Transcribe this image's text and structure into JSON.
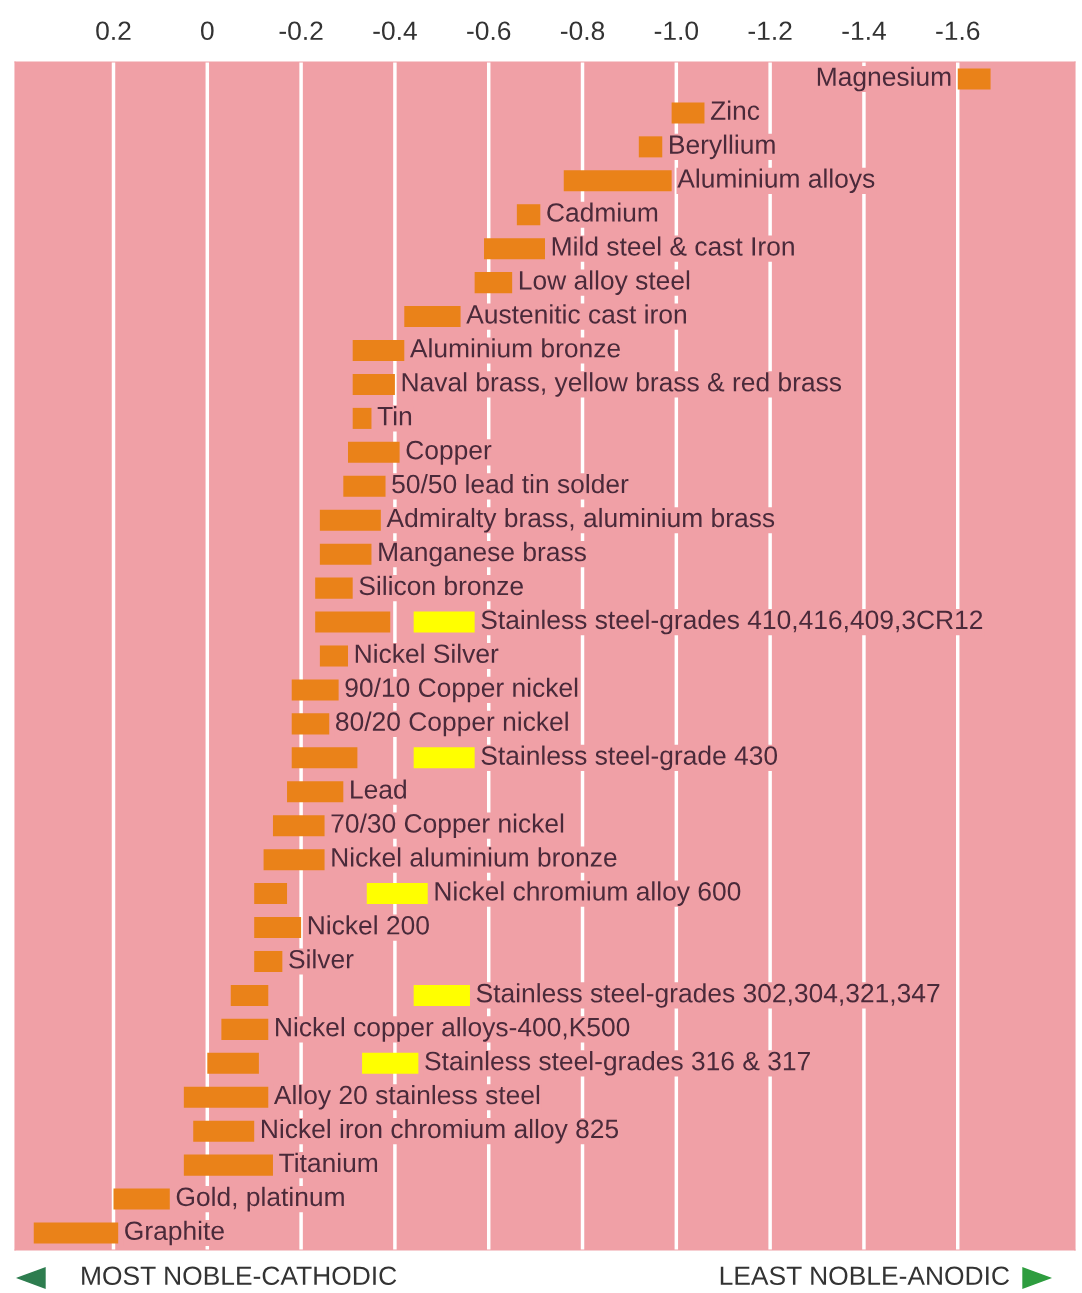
{
  "chart_data": {
    "type": "bar",
    "orientation": "horizontal",
    "categories": [
      "Magnesium",
      "Zinc",
      "Beryllium",
      "Aluminium alloys",
      "Cadmium",
      "Mild steel & cast Iron",
      "Low alloy steel",
      "Austenitic cast iron",
      "Aluminium bronze",
      "Naval brass, yellow brass & red brass",
      "Tin",
      "Copper",
      "50/50 lead tin solder",
      "Admiralty brass, aluminium brass",
      "Manganese brass",
      "Silicon bronze",
      "Stainless steel-grades 410,416,409,3CR12",
      "Nickel Silver",
      "90/10 Copper nickel",
      "80/20 Copper nickel",
      "Stainless steel-grade 430",
      "Lead",
      "70/30 Copper nickel",
      "Nickel aluminium bronze",
      "Nickel chromium alloy 600",
      "Nickel 200",
      "Silver",
      "Stainless steel-grades 302,304,321,347",
      "Nickel copper alloys-400,K500",
      "Stainless steel-grades 316 & 317",
      "Alloy 20 stainless steel",
      "Nickel iron chromium alloy 825",
      "Titanium",
      "Gold, platinum",
      "Graphite"
    ],
    "series": [
      {
        "color": "#ea8219",
        "base": [
          -1.6,
          -0.99,
          -0.92,
          -0.76,
          -0.66,
          -0.59,
          -0.57,
          -0.42,
          -0.31,
          -0.31,
          -0.31,
          -0.3,
          -0.29,
          -0.24,
          -0.24,
          -0.23,
          -0.23,
          -0.24,
          -0.18,
          -0.18,
          -0.18,
          -0.17,
          -0.14,
          -0.12,
          -0.1,
          -0.1,
          -0.1,
          -0.05,
          -0.03,
          0.0,
          0.05,
          0.03,
          0.05,
          0.2,
          0.37
        ],
        "values": [
          -0.07,
          -0.07,
          -0.05,
          -0.23,
          -0.05,
          -0.13,
          -0.08,
          -0.12,
          -0.11,
          -0.09,
          -0.04,
          -0.11,
          -0.09,
          -0.13,
          -0.11,
          -0.08,
          -0.16,
          -0.06,
          -0.1,
          -0.08,
          -0.14,
          -0.12,
          -0.11,
          -0.13,
          -0.07,
          -0.1,
          -0.06,
          -0.08,
          -0.1,
          -0.11,
          -0.18,
          -0.13,
          -0.19,
          -0.12,
          -0.18
        ]
      },
      {
        "color": "#ffff00",
        "base": [
          null,
          null,
          null,
          null,
          null,
          null,
          null,
          null,
          null,
          null,
          null,
          null,
          null,
          null,
          null,
          null,
          -0.44,
          null,
          null,
          null,
          -0.44,
          null,
          null,
          null,
          -0.34,
          null,
          null,
          -0.44,
          null,
          -0.33,
          null,
          null,
          null,
          null,
          null
        ],
        "values": [
          null,
          null,
          null,
          null,
          null,
          null,
          null,
          null,
          null,
          null,
          null,
          null,
          null,
          null,
          null,
          null,
          -0.13,
          null,
          null,
          null,
          -0.13,
          null,
          null,
          null,
          -0.13,
          null,
          null,
          -0.12,
          null,
          -0.12,
          null,
          null,
          null,
          null,
          null
        ]
      }
    ],
    "xlim": [
      0.41,
      -1.85
    ],
    "xticks": [
      0.2,
      0,
      -0.2,
      -0.4,
      -0.6,
      -0.8,
      {
        "value": -1.0,
        "label": "-1.0"
      },
      -1.2,
      -1.4,
      -1.6
    ],
    "grid": "x",
    "tick_labels": "x",
    "annotations": [
      "MOST NOBLE-CATHODIC",
      "LEAST NOBLE-ANODIC"
    ]
  }
}
